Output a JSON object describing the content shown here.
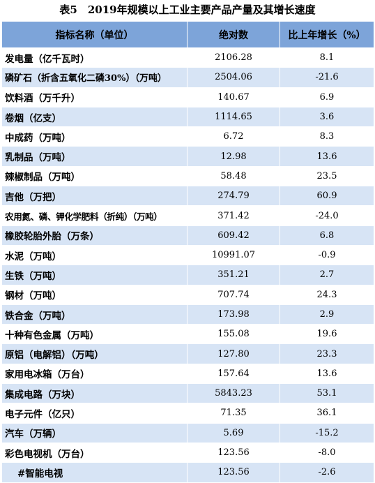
{
  "title": "表5　2019年规模以上工业主要产品产量及其增长速度",
  "table": {
    "headers": [
      "指标名称（单位）",
      "绝对数",
      "比上年增长（%）"
    ],
    "rows": [
      {
        "name": "发电量（亿千瓦时）",
        "value": "2106.28",
        "growth": "8.1"
      },
      {
        "name": "磷矿石（折含五氧化二磷30%）（万吨）",
        "value": "2504.06",
        "growth": "-21.6"
      },
      {
        "name": "饮料酒（万千升）",
        "value": "140.67",
        "growth": "6.9"
      },
      {
        "name": "卷烟（亿支）",
        "value": "1114.65",
        "growth": "3.6"
      },
      {
        "name": "中成药（万吨）",
        "value": "6.72",
        "growth": "8.3"
      },
      {
        "name": "乳制品（万吨）",
        "value": "12.98",
        "growth": "13.6"
      },
      {
        "name": "辣椒制品（万吨）",
        "value": "58.48",
        "growth": "23.5"
      },
      {
        "name": "吉他（万把）",
        "value": "274.79",
        "growth": "60.9"
      },
      {
        "name": "农用氮、磷、钾化学肥料（折纯）（万吨）",
        "value": "371.42",
        "growth": "-24.0"
      },
      {
        "name": "橡胶轮胎外胎（万条）",
        "value": "609.42",
        "growth": "6.8"
      },
      {
        "name": "水泥（万吨）",
        "value": "10991.07",
        "growth": "-0.9"
      },
      {
        "name": "生铁（万吨）",
        "value": "351.21",
        "growth": "2.7"
      },
      {
        "name": "钢材（万吨）",
        "value": "707.74",
        "growth": "24.3"
      },
      {
        "name": "铁合金（万吨）",
        "value": "173.98",
        "growth": "2.9"
      },
      {
        "name": "十种有色金属（万吨）",
        "value": "155.08",
        "growth": "19.6"
      },
      {
        "name": "原铝（电解铝）（万吨）",
        "value": "127.80",
        "growth": "23.3"
      },
      {
        "name": "家用电冰箱（万台）",
        "value": "157.64",
        "growth": "13.6"
      },
      {
        "name": "集成电路（万块）",
        "value": "5843.23",
        "growth": "53.1"
      },
      {
        "name": "电子元件（亿只）",
        "value": "71.35",
        "growth": "36.1"
      },
      {
        "name": "汽车（万辆）",
        "value": "5.69",
        "growth": "-15.2"
      },
      {
        "name": "彩色电视机（万台）",
        "value": "123.56",
        "growth": "-8.0"
      },
      {
        "name": "#智能电视",
        "value": "123.56",
        "growth": "-2.6"
      }
    ]
  }
}
